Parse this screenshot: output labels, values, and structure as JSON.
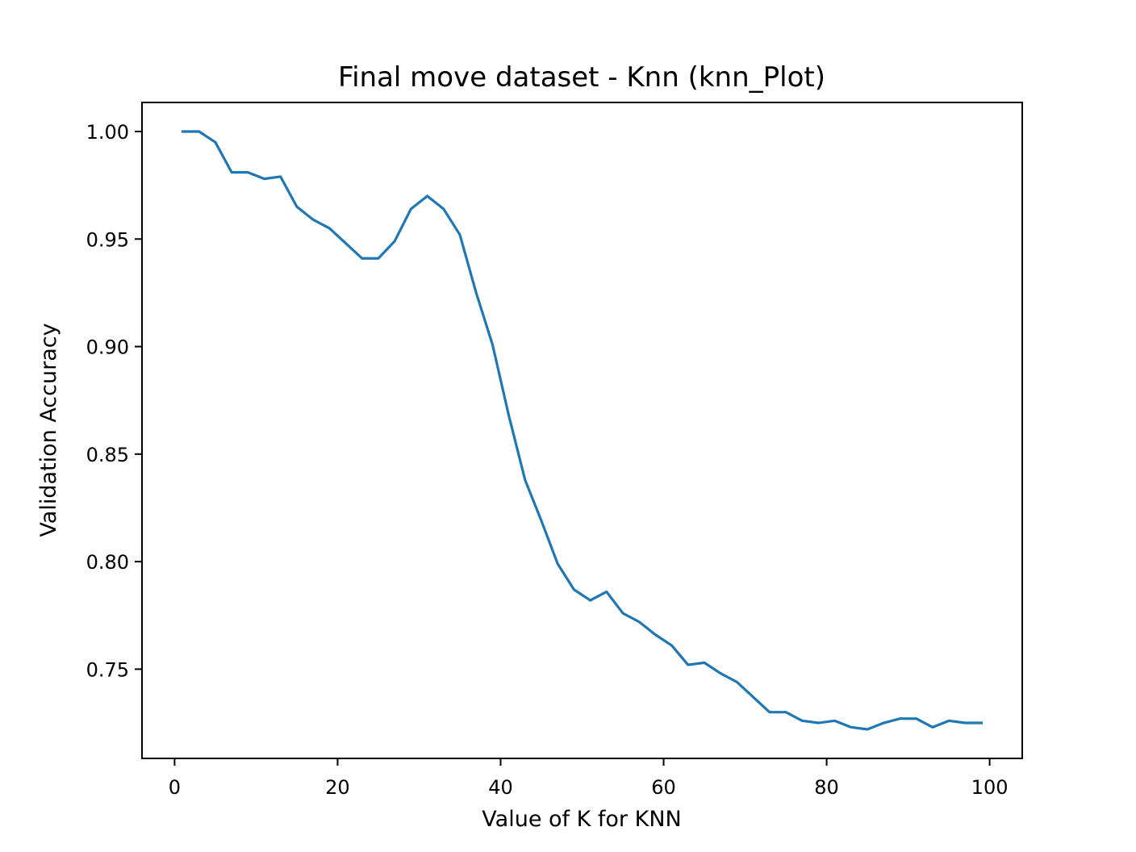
{
  "chart_data": {
    "type": "line",
    "title": "Final move dataset - Knn (knn_Plot)",
    "xlabel": "Value of K for KNN",
    "ylabel": "Validation Accuracy",
    "xlim": [
      -4,
      104
    ],
    "ylim": [
      0.7085,
      1.0135
    ],
    "xticks": [
      0,
      20,
      40,
      60,
      80,
      100
    ],
    "xtick_labels": [
      "0",
      "20",
      "40",
      "60",
      "80",
      "100"
    ],
    "yticks": [
      0.75,
      0.8,
      0.85,
      0.9,
      0.95,
      1.0
    ],
    "ytick_labels": [
      "0.75",
      "0.80",
      "0.85",
      "0.90",
      "0.95",
      "1.00"
    ],
    "grid": false,
    "series": [
      {
        "color": "#1f77b4",
        "x": [
          1,
          3,
          5,
          7,
          9,
          11,
          13,
          15,
          17,
          19,
          21,
          23,
          25,
          27,
          29,
          31,
          33,
          35,
          37,
          39,
          41,
          43,
          45,
          47,
          49,
          51,
          53,
          55,
          57,
          59,
          61,
          63,
          65,
          67,
          69,
          71,
          73,
          75,
          77,
          79,
          81,
          83,
          85,
          87,
          89,
          91,
          93,
          95,
          97,
          99
        ],
        "y": [
          1.0,
          1.0,
          0.995,
          0.981,
          0.981,
          0.978,
          0.979,
          0.965,
          0.959,
          0.955,
          0.948,
          0.941,
          0.941,
          0.949,
          0.964,
          0.97,
          0.964,
          0.952,
          0.925,
          0.901,
          0.868,
          0.838,
          0.819,
          0.799,
          0.787,
          0.782,
          0.786,
          0.776,
          0.772,
          0.766,
          0.761,
          0.752,
          0.753,
          0.748,
          0.744,
          0.737,
          0.73,
          0.73,
          0.726,
          0.725,
          0.726,
          0.723,
          0.722,
          0.725,
          0.727,
          0.727,
          0.723,
          0.726,
          0.725,
          0.725
        ]
      }
    ]
  }
}
